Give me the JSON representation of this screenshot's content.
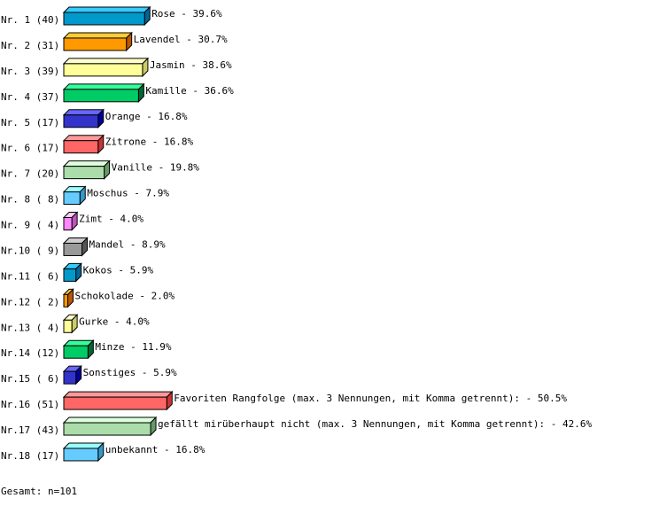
{
  "chart_data": {
    "type": "bar",
    "orientation": "horizontal",
    "style": "3d",
    "categories": [
      "Nr. 1 (40)",
      "Nr. 2 (31)",
      "Nr. 3 (39)",
      "Nr. 4 (37)",
      "Nr. 5 (17)",
      "Nr. 6 (17)",
      "Nr. 7 (20)",
      "Nr. 8 ( 8)",
      "Nr. 9 ( 4)",
      "Nr.10 ( 9)",
      "Nr.11 ( 6)",
      "Nr.12 ( 2)",
      "Nr.13 ( 4)",
      "Nr.14 (12)",
      "Nr.15 ( 6)",
      "Nr.16 (51)",
      "Nr.17 (43)",
      "Nr.18 (17)"
    ],
    "values": [
      40,
      31,
      39,
      37,
      17,
      17,
      20,
      8,
      4,
      9,
      6,
      2,
      4,
      12,
      6,
      51,
      43,
      17
    ],
    "value_labels": [
      "Rose -  39.6%",
      "Lavendel -  30.7%",
      "Jasmin -  38.6%",
      "Kamille -  36.6%",
      "Orange -  16.8%",
      "Zitrone -  16.8%",
      "Vanille -  19.8%",
      "Moschus -   7.9%",
      "Zimt -   4.0%",
      "Mandel -   8.9%",
      "Kokos -   5.9%",
      "Schokolade -   2.0%",
      "Gurke -   4.0%",
      "Minze -  11.9%",
      "Sonstiges -   5.9%",
      "Favoriten Rangfolge (max. 3 Nennungen, mit Komma getrennt): -  50.5%",
      "gefällt mirüberhaupt nicht (max. 3 Nennungen, mit Komma getrennt): -  42.6%",
      "unbekannt -  16.8%"
    ],
    "colors": [
      {
        "front": "#0099cc",
        "top": "#33ccff",
        "side": "#006699"
      },
      {
        "front": "#ff9900",
        "top": "#ffcc33",
        "side": "#bb5500"
      },
      {
        "front": "#ffff99",
        "top": "#ffffcc",
        "side": "#cccc66"
      },
      {
        "front": "#00cc66",
        "top": "#33ff99",
        "side": "#006633"
      },
      {
        "front": "#3333cc",
        "top": "#6666ff",
        "side": "#000099"
      },
      {
        "front": "#ff6666",
        "top": "#ff9999",
        "side": "#cc3333"
      },
      {
        "front": "#aaddaa",
        "top": "#ddffdd",
        "side": "#669966"
      },
      {
        "front": "#66ccff",
        "top": "#99ffff",
        "side": "#3399cc"
      },
      {
        "front": "#ff88ff",
        "top": "#ffccff",
        "side": "#bb55bb"
      },
      {
        "front": "#999999",
        "top": "#cccccc",
        "side": "#555555"
      }
    ],
    "grid": false,
    "legend": "none"
  },
  "footer": {
    "total": "Gesamt: n=101"
  }
}
